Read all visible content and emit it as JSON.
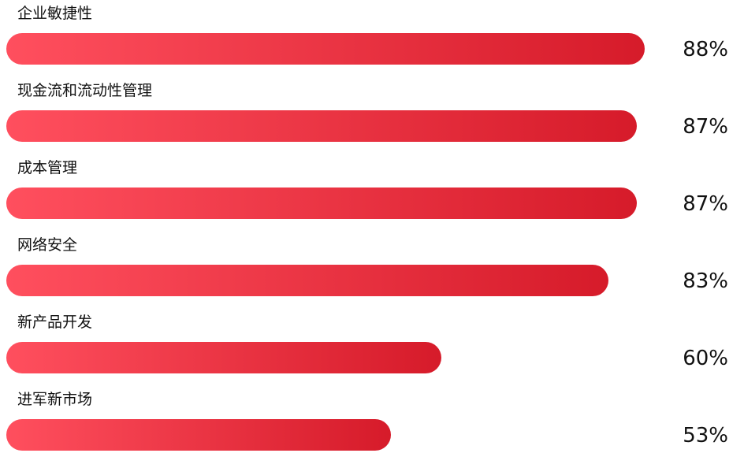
{
  "chart_data": {
    "type": "bar",
    "orientation": "horizontal",
    "categories": [
      "企业敏捷性",
      "现金流和流动性管理",
      "成本管理",
      "网络安全",
      "新产品开发",
      "进军新市场"
    ],
    "values": [
      88,
      87,
      87,
      83,
      60,
      53
    ],
    "value_labels": [
      "88%",
      "87%",
      "87%",
      "83%",
      "60%",
      "53%"
    ],
    "xlim": [
      0,
      100
    ],
    "grid": false,
    "colors": {
      "bar_start": "#ff4f5e",
      "bar_end": "#d61b2a"
    }
  }
}
